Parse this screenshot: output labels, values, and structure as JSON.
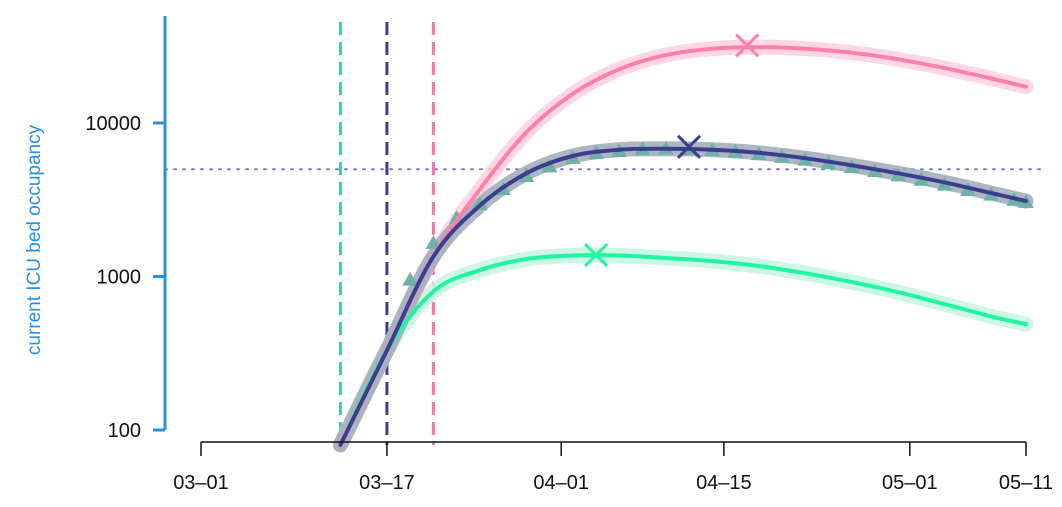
{
  "chart_data": {
    "type": "line",
    "title": "",
    "xlabel": "",
    "ylabel": "current ICU bed occupancy",
    "ylabel_color": "#2a8fe0",
    "y_scale": "log10",
    "ylim": [
      80,
      46000
    ],
    "xlim": [
      "2020-02-28",
      "2020-05-12"
    ],
    "x_ticks": [
      {
        "date": "2020-03-01",
        "label": "03–01"
      },
      {
        "date": "2020-03-17",
        "label": "03–17"
      },
      {
        "date": "2020-04-01",
        "label": "04–01"
      },
      {
        "date": "2020-04-15",
        "label": "04–15"
      },
      {
        "date": "2020-05-01",
        "label": "05–01"
      },
      {
        "date": "2020-05-11",
        "label": "05–11"
      }
    ],
    "y_ticks": [
      {
        "value": 100,
        "label": "100"
      },
      {
        "value": 1000,
        "label": "1000"
      },
      {
        "value": 10000,
        "label": "10000"
      }
    ],
    "grid": false,
    "legend": "none",
    "capacity_line": {
      "value": 5000,
      "color": "#7b7bd6",
      "style": "dotted"
    },
    "intervention_lines": [
      {
        "date": "2020-03-13",
        "color": "#22dd99"
      },
      {
        "date": "2020-03-17",
        "color": "#3d3d8f"
      },
      {
        "date": "2020-03-21",
        "color": "#f07aa2"
      }
    ],
    "series": [
      {
        "color": "#ff80a8",
        "band_color": "#ffd0df",
        "x": [
          "2020-03-13",
          "2020-03-17",
          "2020-03-21",
          "2020-03-25",
          "2020-03-29",
          "2020-04-02",
          "2020-04-06",
          "2020-04-10",
          "2020-04-14",
          "2020-04-18",
          "2020-04-22",
          "2020-04-26",
          "2020-04-30",
          "2020-05-04",
          "2020-05-08",
          "2020-05-11"
        ],
        "y": [
          80,
          330,
          1350,
          3700,
          8700,
          15500,
          22400,
          27700,
          30500,
          31200,
          30500,
          28700,
          26000,
          22800,
          19500,
          17200
        ],
        "peak": {
          "date": "2020-04-17",
          "value": 32000
        }
      },
      {
        "color": "#3d3d8f",
        "band_color": "#9eaab8",
        "x": [
          "2020-03-13",
          "2020-03-17",
          "2020-03-21",
          "2020-03-25",
          "2020-03-29",
          "2020-04-02",
          "2020-04-06",
          "2020-04-10",
          "2020-04-14",
          "2020-04-18",
          "2020-04-22",
          "2020-04-26",
          "2020-04-30",
          "2020-05-04",
          "2020-05-08",
          "2020-05-11"
        ],
        "y": [
          80,
          330,
          1350,
          2900,
          4700,
          6100,
          6700,
          6800,
          6700,
          6400,
          5900,
          5300,
          4700,
          4100,
          3500,
          3100
        ],
        "peak": {
          "date": "2020-04-12",
          "value": 7000
        }
      },
      {
        "color": "#22f5a0",
        "band_color": "#c3f5e0",
        "x": [
          "2020-03-13",
          "2020-03-17",
          "2020-03-21",
          "2020-03-25",
          "2020-03-29",
          "2020-04-02",
          "2020-04-06",
          "2020-04-10",
          "2020-04-14",
          "2020-04-18",
          "2020-04-22",
          "2020-04-26",
          "2020-04-30",
          "2020-05-04",
          "2020-05-08",
          "2020-05-11"
        ],
        "y": [
          80,
          330,
          800,
          1100,
          1300,
          1370,
          1370,
          1320,
          1260,
          1170,
          1050,
          920,
          790,
          660,
          550,
          490
        ],
        "peak": {
          "date": "2020-04-04",
          "value": 1380
        }
      }
    ],
    "observed": {
      "marker": "triangle",
      "color": "#6fb0a8",
      "x": [
        "2020-03-19",
        "2020-03-21",
        "2020-03-23",
        "2020-03-25",
        "2020-03-27",
        "2020-03-29",
        "2020-03-31",
        "2020-04-02",
        "2020-04-04",
        "2020-04-06",
        "2020-04-08",
        "2020-04-10",
        "2020-04-12",
        "2020-04-14",
        "2020-04-16",
        "2020-04-18",
        "2020-04-20",
        "2020-04-22",
        "2020-04-24",
        "2020-04-26",
        "2020-04-28",
        "2020-04-30",
        "2020-05-02",
        "2020-05-04",
        "2020-05-06",
        "2020-05-08",
        "2020-05-10",
        "2020-05-11"
      ],
      "y": [
        950,
        1650,
        2400,
        2950,
        3700,
        4500,
        5200,
        5900,
        6350,
        6550,
        6750,
        6800,
        6750,
        6650,
        6500,
        6250,
        6000,
        5750,
        5450,
        5150,
        4850,
        4550,
        4250,
        3950,
        3650,
        3400,
        3150,
        3050
      ]
    }
  }
}
